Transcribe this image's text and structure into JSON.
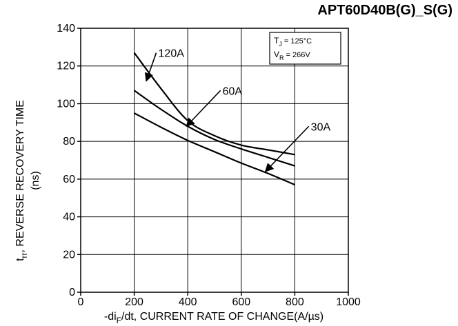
{
  "header": {
    "part_number": "APT60D40B(G)_S(G)"
  },
  "chart_data": {
    "type": "line",
    "title": "",
    "xlabel": "-di_F/dt, CURRENT RATE OF CHANGE(A/µs)",
    "xlabel_parts": [
      "-di",
      "F",
      "/dt, CURRENT RATE OF CHANGE(A/µs)"
    ],
    "ylabel": "t_rr, REVERSE RECOVERY TIME (ns)",
    "ylabel_parts": [
      "t",
      "rr",
      ", REVERSE RECOVERY TIME",
      "(ns)"
    ],
    "xlim": [
      0,
      1000
    ],
    "ylim": [
      0,
      140
    ],
    "xticks": [
      0,
      200,
      400,
      600,
      800,
      1000
    ],
    "yticks": [
      0,
      20,
      40,
      60,
      80,
      100,
      120,
      140
    ],
    "grid": true,
    "conditions": {
      "tj_sym": "T",
      "tj_sub": "J",
      "tj_val": " = 125°C",
      "vr_sym": "V",
      "vr_sub": "R",
      "vr_val": " = 266V"
    },
    "series": [
      {
        "name": "120A",
        "x": [
          200,
          300,
          400,
          500,
          600,
          700,
          800
        ],
        "y": [
          127,
          108,
          91,
          83,
          78,
          75.5,
          73
        ]
      },
      {
        "name": "60A",
        "x": [
          200,
          300,
          400,
          500,
          600,
          700,
          800
        ],
        "y": [
          107,
          97,
          88,
          81,
          76,
          71.5,
          67
        ]
      },
      {
        "name": "30A",
        "x": [
          200,
          300,
          400,
          500,
          600,
          700,
          800
        ],
        "y": [
          95,
          87.5,
          80.5,
          74.5,
          68.5,
          63,
          57
        ]
      }
    ],
    "annotations": [
      {
        "series": "120A",
        "label": "120A",
        "text_x": 290,
        "text_y": 127,
        "arrow_x": 245,
        "arrow_y": 112
      },
      {
        "series": "60A",
        "label": "60A",
        "text_x": 530,
        "text_y": 107,
        "arrow_x": 395,
        "arrow_y": 88
      },
      {
        "series": "30A",
        "label": "30A",
        "text_x": 860,
        "text_y": 88,
        "arrow_x": 690,
        "arrow_y": 64
      }
    ]
  }
}
